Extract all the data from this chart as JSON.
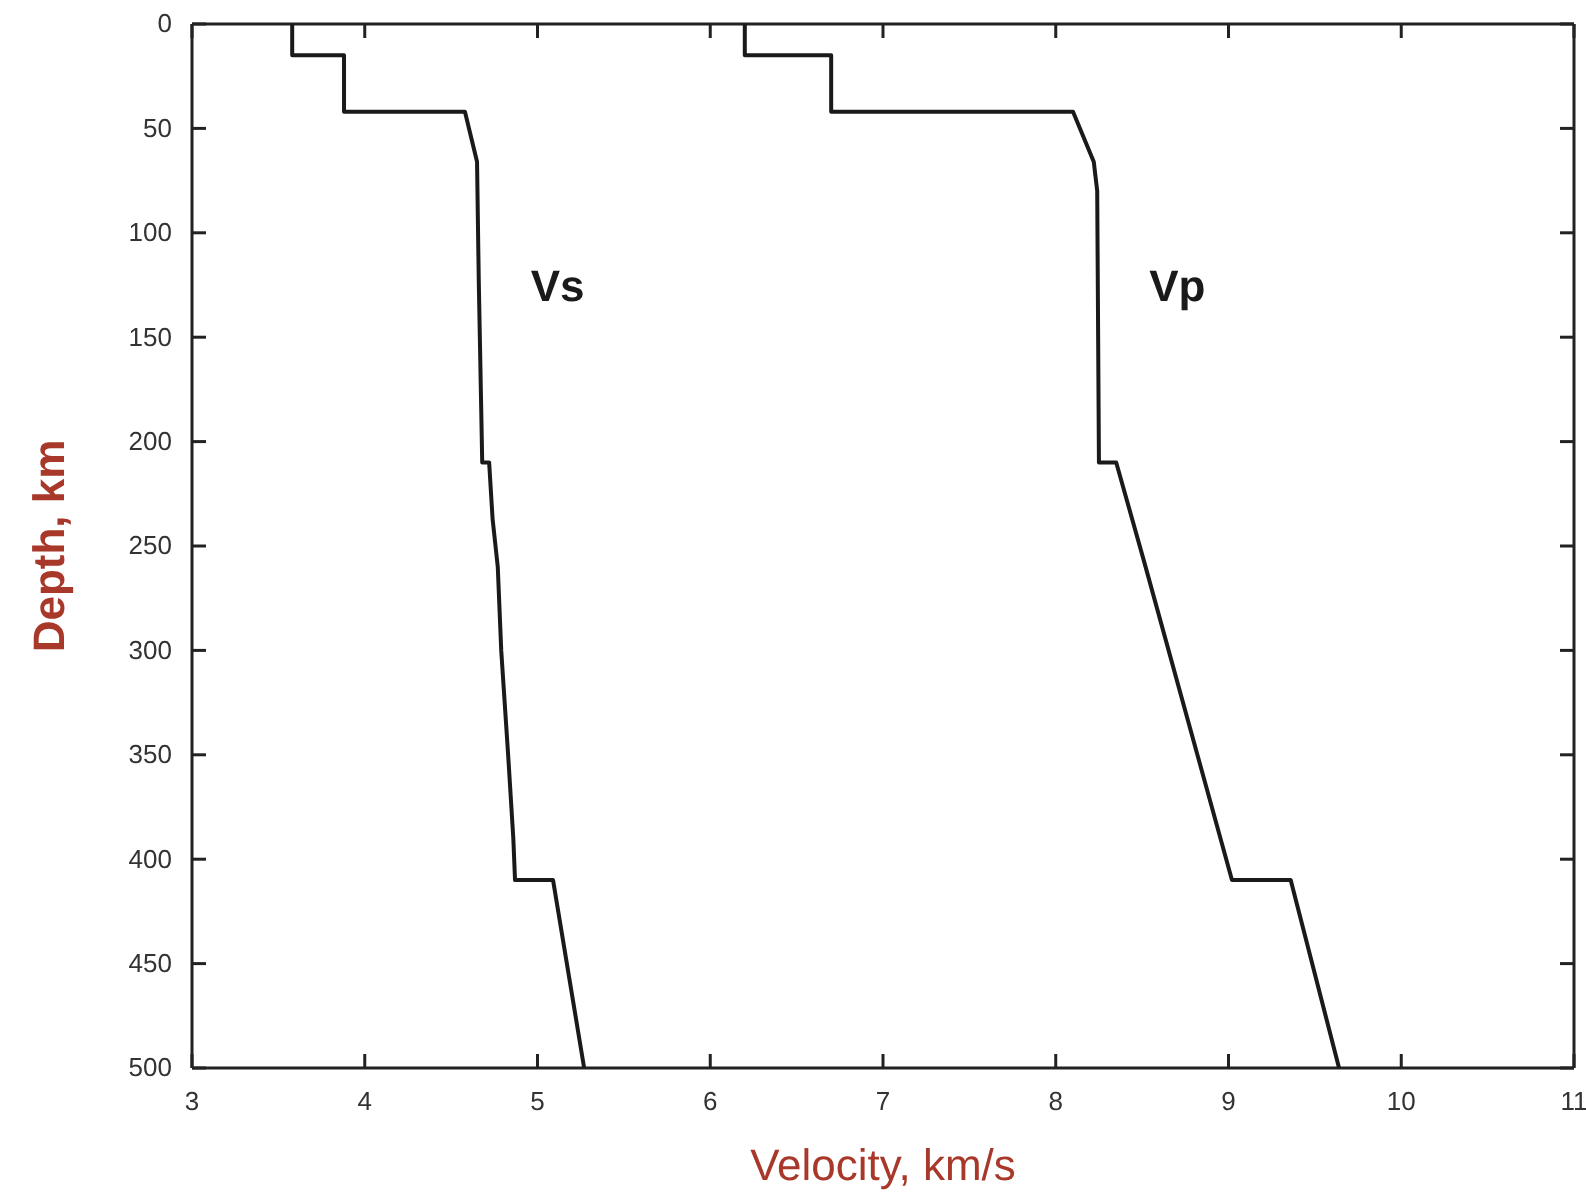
{
  "chart_data": {
    "type": "line",
    "xlabel": "Velocity, km/s",
    "ylabel": "Depth, km",
    "xlim": [
      3,
      11
    ],
    "xticks": [
      3,
      4,
      5,
      6,
      7,
      8,
      9,
      10,
      11
    ],
    "ylim": [
      500,
      0
    ],
    "yticks": [
      0,
      50,
      100,
      150,
      200,
      250,
      300,
      350,
      400,
      450,
      500
    ],
    "grid": false,
    "legend": false,
    "marker": "none",
    "line_style": "solid",
    "series": [
      {
        "name": "Vs",
        "color": "#1a1a1a",
        "x": [
          3.58,
          3.58,
          3.88,
          3.88,
          4.58,
          4.65,
          4.66,
          4.68,
          4.72,
          4.74,
          4.77,
          4.79,
          4.83,
          4.86,
          4.87,
          5.09,
          5.27
        ],
        "values": [
          0,
          15,
          15,
          42,
          42,
          66,
          123,
          210,
          210,
          237,
          260,
          300,
          350,
          390,
          410,
          410,
          500
        ]
      },
      {
        "name": "Vp",
        "color": "#1a1a1a",
        "x": [
          6.2,
          6.2,
          6.7,
          6.7,
          8.1,
          8.22,
          8.24,
          8.25,
          8.35,
          8.51,
          9.02,
          9.36,
          9.64
        ],
        "values": [
          0,
          15,
          15,
          42,
          42,
          66,
          80,
          210,
          210,
          257,
          410,
          410,
          500
        ]
      }
    ]
  }
}
